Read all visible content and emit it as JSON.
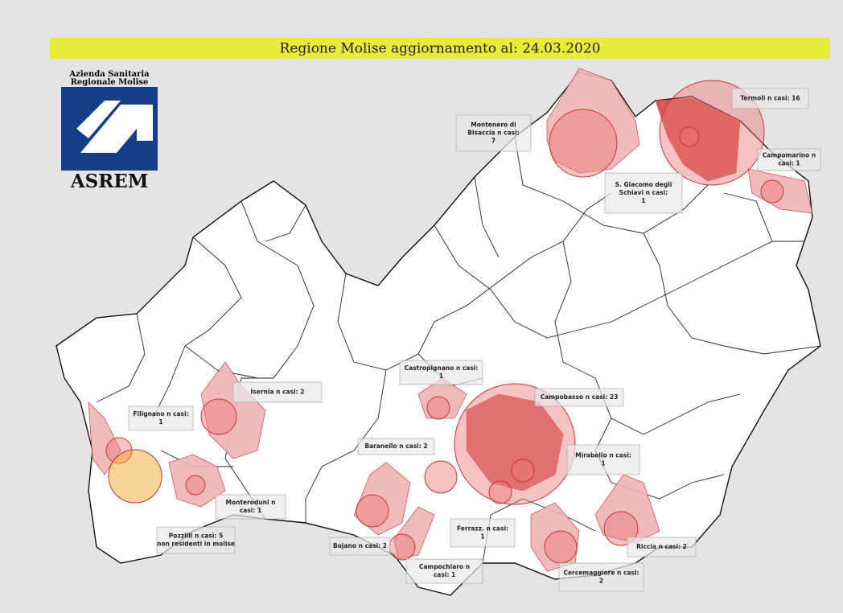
{
  "header": {
    "title": "Regione Molise aggiornamento al: 24.03.2020"
  },
  "logo": {
    "line1": "Azienda Sanitaria",
    "line2": "Regionale Molise",
    "name": "ASREM"
  },
  "labels": [
    {
      "lines": [
        "Montenero di",
        "Bisaccia n casi:",
        "7"
      ]
    },
    {
      "lines": [
        "Termoli n casi: 16"
      ]
    },
    {
      "lines": [
        "Campomarino n",
        "casi: 1"
      ]
    },
    {
      "lines": [
        "S. Giacomo degli",
        "Schiavi n casi:",
        "1"
      ]
    },
    {
      "lines": [
        "Castropignano n casi:",
        "1"
      ]
    },
    {
      "lines": [
        "Isernia n casi: 2"
      ]
    },
    {
      "lines": [
        "Filignano n casi:",
        "1"
      ]
    },
    {
      "lines": [
        "Campobasso n casi: 23"
      ]
    },
    {
      "lines": [
        "Baranello n casi: 2"
      ]
    },
    {
      "lines": [
        "Mirabello n casi:",
        "1"
      ]
    },
    {
      "lines": [
        "Monteroduni n",
        "casi: 1"
      ]
    },
    {
      "lines": [
        "Pozzilli n casi: 5",
        "non residenti in molise"
      ]
    },
    {
      "lines": [
        "Ferrazz. n casi:",
        "1"
      ]
    },
    {
      "lines": [
        "Bojano n casi: 2"
      ]
    },
    {
      "lines": [
        "Campochiaro n",
        "casi: 1"
      ]
    },
    {
      "lines": [
        "Cercemaggiore n casi:",
        "2"
      ]
    },
    {
      "lines": [
        "Riccia n casi: 2"
      ]
    }
  ]
}
